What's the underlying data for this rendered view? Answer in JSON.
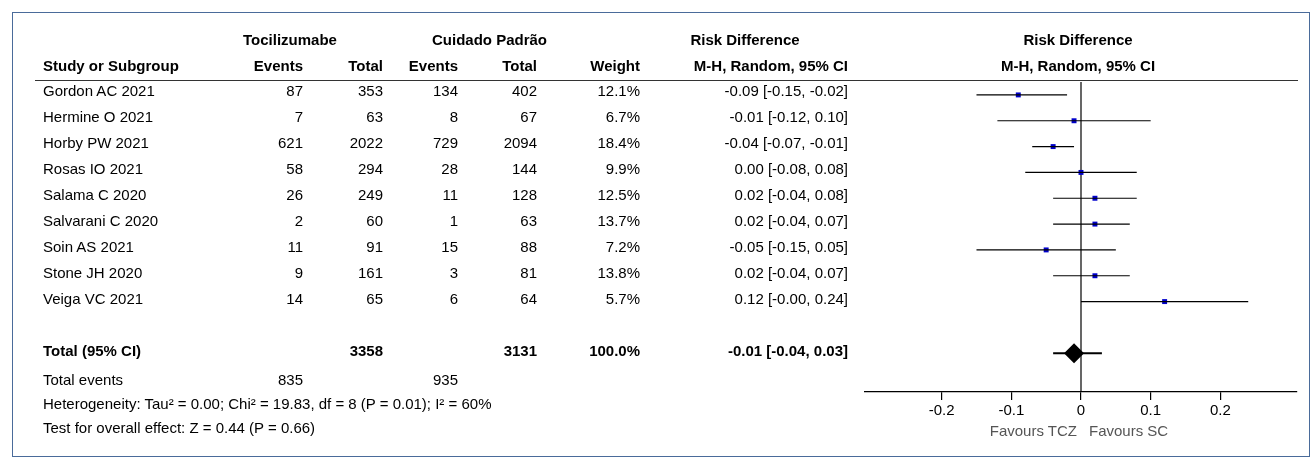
{
  "chart_data": [
    {
      "type": "other",
      "ylabel": "Study or Subgroup",
      "categories": [
        "Gordon AC 2021",
        "Hermine O 2021",
        "Horby PW 2021",
        "Rosas IO 2021",
        "Salama C 2020",
        "Salvarani C 2020",
        "Soin AS 2021",
        "Stone JH 2020",
        "Veiga VC 2021",
        null,
        "Total (95% CI)",
        "Total events"
      ],
      "data_labels": true,
      "series": [
        {
          "name": "Events",
          "values": [
            87,
            7,
            621,
            58,
            26,
            2,
            11,
            9,
            14,
            null,
            null,
            835
          ]
        },
        {
          "name": "Total",
          "values": [
            353,
            63,
            2022,
            294,
            249,
            60,
            91,
            161,
            65,
            null,
            3358,
            null
          ]
        },
        {
          "name": "Events",
          "values": [
            134,
            8,
            729,
            28,
            11,
            1,
            15,
            3,
            6,
            null,
            null,
            935
          ]
        },
        {
          "name": "Total",
          "values": [
            402,
            67,
            2094,
            144,
            128,
            63,
            88,
            81,
            64,
            null,
            3131,
            null
          ]
        },
        {
          "name": "Weight",
          "values": [
            12.1,
            6.7,
            18.4,
            9.9,
            12.5,
            13.7,
            7.2,
            13.8,
            5.7,
            null,
            100.0,
            null
          ],
          "value_labels": [
            "12.1%",
            "6.7%",
            "18.4%",
            "9.9%",
            "12.5%",
            "13.7%",
            "7.2%",
            "13.8%",
            "5.7%",
            null,
            "100.0%",
            null
          ]
        },
        {
          "name": "M-H, Random, 95% CI",
          "values": [
            -0.09,
            -0.01,
            -0.04,
            0.0,
            0.02,
            0.02,
            -0.05,
            0.02,
            0.12,
            null,
            -0.01,
            null
          ],
          "value_labels": [
            "-0.09 [-0.15, -0.02]",
            "-0.01 [-0.12, 0.10]",
            "-0.04 [-0.07, -0.01]",
            "0.00 [-0.08, 0.08]",
            "0.02 [-0.04, 0.08]",
            "0.02 [-0.04, 0.07]",
            "-0.05 [-0.15, 0.05]",
            "0.02 [-0.04, 0.07]",
            "0.12 [-0.00, 0.24]",
            null,
            "-0.01 [-0.04, 0.03]",
            null
          ]
        }
      ],
      "annotations": [
        "Tocilizumabe",
        "Cuidado Padrão",
        "Risk Difference",
        "Heterogeneity: Tau² = 0.00; Chi² = 19.83, df = 8 (P = 0.01); I² = 60%",
        "Test for overall effect: Z = 0.44 (P = 0.66)"
      ]
    },
    {
      "type": "scatter",
      "orientation": "horizontal",
      "title": "Risk Difference",
      "subtitle": "M-H, Random, 95% CI",
      "categories": [
        null,
        null,
        null,
        null,
        null,
        null,
        null,
        null,
        null,
        null,
        null,
        null
      ],
      "xlim": [
        -0.31,
        0.31
      ],
      "xticks": [
        -0.2,
        -0.1,
        0,
        0.1,
        0.2
      ],
      "tick_labels": "x",
      "grid": false,
      "legend": false,
      "series": [
        {
          "color": "#0000cc",
          "marker": "square",
          "values": [
            -0.09,
            -0.01,
            -0.04,
            0.0,
            0.02,
            0.02,
            -0.05,
            0.02,
            0.12,
            null,
            null,
            null
          ],
          "errors": [
            [
              -0.15,
              -0.02
            ],
            [
              -0.12,
              0.1
            ],
            [
              -0.07,
              -0.01
            ],
            [
              -0.08,
              0.08
            ],
            [
              -0.04,
              0.08
            ],
            [
              -0.04,
              0.07
            ],
            [
              -0.15,
              0.05
            ],
            [
              -0.04,
              0.07
            ],
            [
              0.0,
              0.24
            ],
            null,
            null,
            null
          ]
        },
        {
          "color": "#000000",
          "marker": "diamond",
          "values": [
            null,
            null,
            null,
            null,
            null,
            null,
            null,
            null,
            null,
            null,
            -0.01,
            null
          ],
          "errors": [
            null,
            null,
            null,
            null,
            null,
            null,
            null,
            null,
            null,
            null,
            [
              -0.04,
              0.03
            ],
            null
          ]
        }
      ],
      "ref_lines": [
        {
          "axis": "x",
          "value": 0
        }
      ],
      "annotations": [
        "Favours TCZ",
        "Favours SC"
      ]
    }
  ]
}
